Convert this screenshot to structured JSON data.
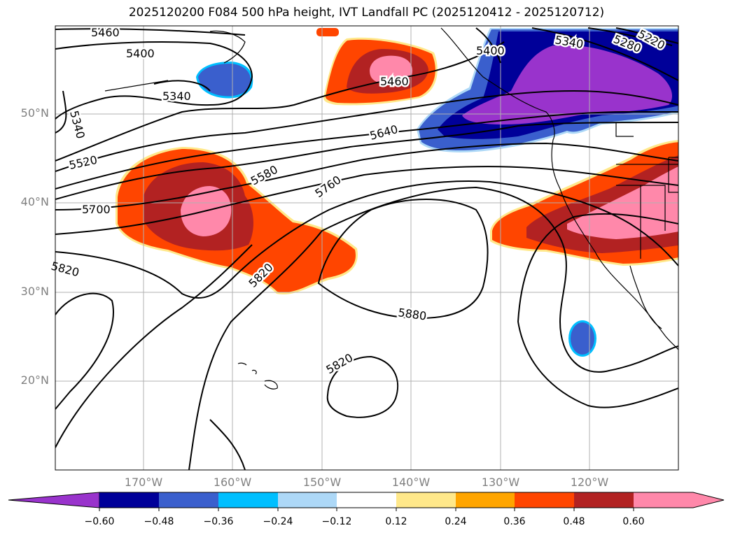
{
  "title": "2025120200 F084 500 hPa height, IVT Landfall PC (2025120412 - 2025120712)",
  "lat_labels": [
    "50°N",
    "40°N",
    "30°N",
    "20°N"
  ],
  "lon_labels": [
    "170°W",
    "160°W",
    "150°W",
    "140°W",
    "130°W",
    "120°W"
  ],
  "colorbar": {
    "ticks": [
      "−0.60",
      "−0.48",
      "−0.36",
      "−0.24",
      "−0.12",
      "0.12",
      "0.24",
      "0.36",
      "0.48",
      "0.60"
    ],
    "colors": [
      "#9933cc",
      "#000099",
      "#3a5fcd",
      "#00bfff",
      "#add8f7",
      "#ffffff",
      "#ffe88a",
      "#ffa500",
      "#ff4500",
      "#b22222",
      "#ff88aa"
    ]
  },
  "contour_labels": [
    "5460",
    "5400",
    "5340",
    "5340",
    "5520",
    "5700",
    "5580",
    "5760",
    "5640",
    "5460",
    "5820",
    "5820",
    "5880",
    "5820",
    "5400",
    "5340",
    "5280",
    "5220"
  ]
}
